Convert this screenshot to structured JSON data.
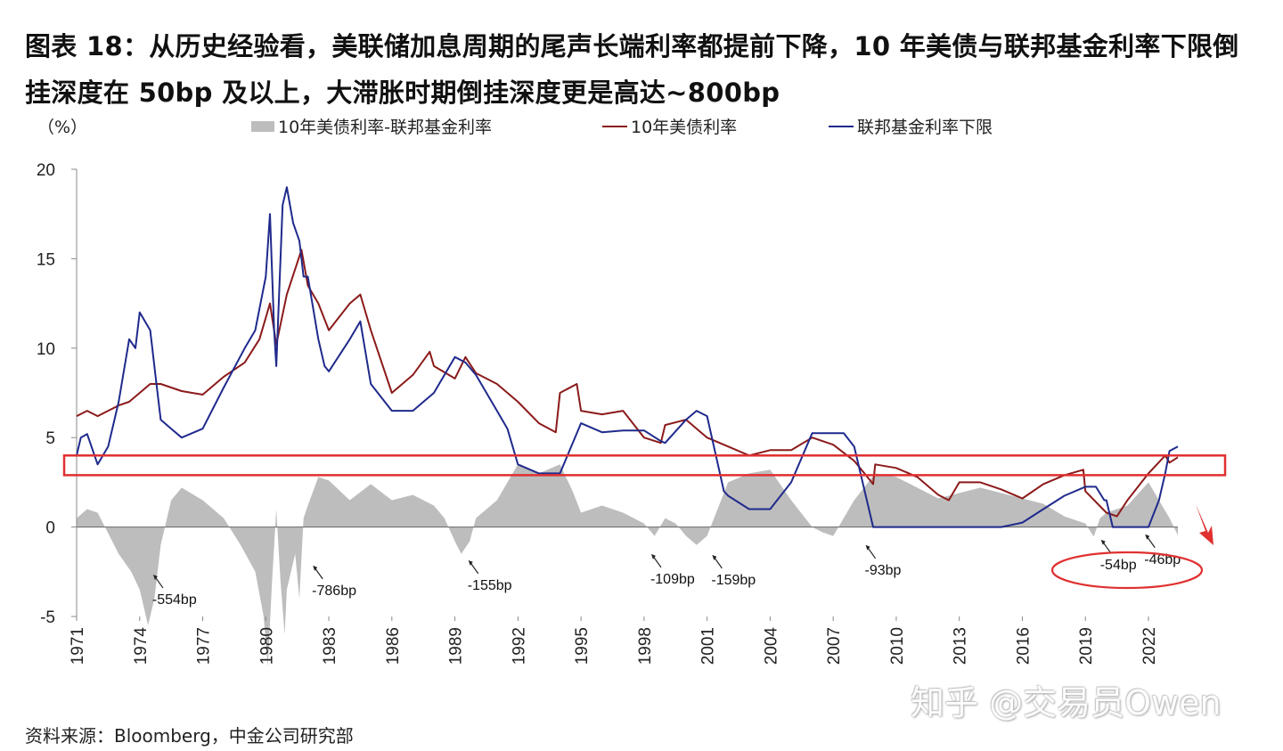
{
  "title": "图表 18：从历史经验看，美联储加息周期的尾声长端利率都提前下降，10 年美债与联邦基金利率下限倒挂深度在 50bp 及以上，大滞胀时期倒挂深度更是高达~800bp",
  "unit_label": "（%）",
  "source": "资料来源：Bloomberg，中金公司研究部",
  "watermark": "知乎 @交易员Owen",
  "colors": {
    "spread": "#bdbdbd",
    "treasury": "#8b1a1a",
    "fedfunds": "#1f2a8c",
    "highlight": "#e03030"
  },
  "chart_data": {
    "type": "line",
    "title": "",
    "xlabel": "",
    "ylabel": "（%）",
    "ylim": [
      -5,
      20
    ],
    "yticks": [
      20,
      15,
      10,
      5,
      0,
      -5
    ],
    "xlim": [
      1971,
      2023.4
    ],
    "xticks": [
      "1971",
      "1974",
      "1977",
      "1980",
      "1983",
      "1986",
      "1989",
      "1992",
      "1995",
      "1998",
      "2001",
      "2004",
      "2007",
      "2010",
      "2013",
      "2016",
      "2019",
      "2022"
    ],
    "legend_position": "top",
    "series": [
      {
        "name": "10年美债利率-联邦基金利率",
        "kind": "area",
        "x": [
          1971,
          1971.5,
          1972,
          1973,
          1973.6,
          1974,
          1974.4,
          1974.7,
          1975,
          1975.5,
          1976,
          1977,
          1978,
          1978.8,
          1979.5,
          1979.9,
          1980.1,
          1980.3,
          1980.5,
          1980.7,
          1980.9,
          1981,
          1981.2,
          1981.4,
          1981.6,
          1981.8,
          1982,
          1982.5,
          1983,
          1984,
          1985,
          1986,
          1987,
          1988,
          1988.5,
          1989,
          1989.3,
          1989.7,
          1990,
          1991,
          1992,
          1993,
          1994,
          1994.6,
          1995,
          1996,
          1997,
          1998,
          1998.5,
          1999,
          1999.5,
          2000,
          2000.5,
          2001,
          2002,
          2003,
          2004,
          2005,
          2006,
          2006.5,
          2007,
          2008,
          2009,
          2010,
          2012,
          2014,
          2016,
          2017,
          2018,
          2019,
          2019.4,
          2019.7,
          2020,
          2021,
          2022,
          2022.5,
          2023,
          2023.4
        ],
        "y": [
          0.5,
          1.0,
          0.8,
          -1.5,
          -2.5,
          -3.5,
          -5.5,
          -4.0,
          -1.0,
          1.5,
          2.2,
          1.5,
          0.5,
          -1.0,
          -2.5,
          -5.0,
          -7.8,
          -3.0,
          1.0,
          -3.0,
          -6.0,
          -3.5,
          -2.5,
          -1.5,
          -4.0,
          0.5,
          1.2,
          2.8,
          2.6,
          1.5,
          2.4,
          1.5,
          1.8,
          1.2,
          0.5,
          -0.8,
          -1.5,
          -0.8,
          0.5,
          1.5,
          3.5,
          3.0,
          3.5,
          2.0,
          0.8,
          1.2,
          0.8,
          0.2,
          -0.5,
          0.5,
          0.2,
          -0.5,
          -1.0,
          -0.5,
          2.5,
          3.0,
          3.2,
          1.5,
          0.0,
          -0.3,
          -0.5,
          1.5,
          3.0,
          2.8,
          1.6,
          2.2,
          1.6,
          1.3,
          0.6,
          0.2,
          -0.54,
          0.5,
          0.8,
          1.2,
          2.5,
          1.5,
          0.5,
          -0.46
        ]
      },
      {
        "name": "10年美债利率",
        "kind": "line",
        "x": [
          1971,
          1971.5,
          1972,
          1973,
          1973.5,
          1974,
          1974.5,
          1975,
          1976,
          1977,
          1978,
          1979,
          1979.7,
          1980.2,
          1980.5,
          1981,
          1981.7,
          1982,
          1982.5,
          1983,
          1984,
          1984.5,
          1985,
          1986,
          1987,
          1987.8,
          1988,
          1989,
          1989.5,
          1990,
          1991,
          1992,
          1993,
          1993.8,
          1994,
          1994.8,
          1995,
          1996,
          1997,
          1998,
          1998.8,
          1999,
          2000,
          2001,
          2002,
          2003,
          2004,
          2005,
          2006,
          2007,
          2008,
          2008.9,
          2009,
          2010,
          2011,
          2012,
          2012.5,
          2013,
          2014,
          2015,
          2016,
          2017,
          2018,
          2018.9,
          2019,
          2020,
          2020.5,
          2021,
          2022,
          2022.8,
          2023,
          2023.4
        ],
        "y": [
          6.2,
          6.5,
          6.2,
          6.8,
          7.0,
          7.5,
          8.0,
          8.0,
          7.6,
          7.4,
          8.4,
          9.2,
          10.5,
          12.5,
          10.2,
          13.0,
          15.5,
          13.5,
          12.5,
          11.0,
          12.5,
          13.0,
          11.0,
          7.5,
          8.5,
          9.8,
          9.0,
          8.3,
          9.5,
          8.6,
          8.0,
          7.0,
          5.8,
          5.3,
          7.5,
          8.0,
          6.5,
          6.3,
          6.5,
          5.0,
          4.7,
          5.7,
          6.0,
          5.0,
          4.5,
          4.0,
          4.3,
          4.3,
          5.0,
          4.6,
          3.7,
          2.4,
          3.5,
          3.3,
          2.8,
          1.8,
          1.5,
          2.5,
          2.5,
          2.1,
          1.6,
          2.4,
          2.9,
          3.2,
          2.0,
          0.8,
          0.6,
          1.5,
          3.0,
          4.0,
          3.6,
          3.9
        ]
      },
      {
        "name": "联邦基金利率下限",
        "kind": "line",
        "x": [
          1971,
          1971.2,
          1971.5,
          1972,
          1972.5,
          1973,
          1973.5,
          1973.8,
          1974,
          1974.5,
          1974.8,
          1975,
          1975.5,
          1976,
          1977,
          1978,
          1979,
          1979.5,
          1980,
          1980.2,
          1980.4,
          1980.5,
          1980.8,
          1981,
          1981.3,
          1981.6,
          1981.8,
          1982,
          1982.5,
          1982.8,
          1983,
          1984,
          1984.5,
          1985,
          1986,
          1987,
          1988,
          1989,
          1989.5,
          1990,
          1991,
          1991.5,
          1992,
          1993,
          1994,
          1995,
          1996,
          1997,
          1998,
          1998.8,
          1999,
          2000,
          2000.5,
          2001,
          2001.8,
          2002,
          2003,
          2004,
          2005,
          2006,
          2007,
          2007.5,
          2008,
          2008.9,
          2009,
          2015,
          2016,
          2017,
          2018,
          2019,
          2019.5,
          2019.9,
          2020,
          2020.3,
          2021,
          2022,
          2022.5,
          2022.8,
          2023,
          2023.4
        ],
        "y": [
          4.0,
          5.0,
          5.2,
          3.5,
          4.5,
          7.0,
          10.5,
          10.0,
          12.0,
          11.0,
          8.0,
          6.0,
          5.5,
          5.0,
          5.5,
          7.8,
          10.0,
          11.0,
          14.0,
          17.5,
          11.0,
          9.0,
          18.0,
          19.0,
          17.0,
          16.0,
          14.0,
          14.0,
          10.5,
          9.0,
          8.7,
          10.5,
          11.5,
          8.0,
          6.5,
          6.5,
          7.5,
          9.5,
          9.2,
          8.5,
          6.5,
          5.5,
          3.5,
          3.0,
          3.0,
          5.8,
          5.3,
          5.4,
          5.4,
          4.8,
          4.7,
          6.0,
          6.5,
          6.2,
          2.0,
          1.75,
          1.0,
          1.0,
          2.5,
          5.25,
          5.25,
          5.25,
          4.5,
          0.0,
          0.0,
          0.0,
          0.25,
          1.0,
          1.75,
          2.25,
          2.25,
          1.5,
          1.5,
          0.0,
          0.0,
          0.0,
          1.5,
          3.0,
          4.25,
          4.5
        ]
      }
    ],
    "annotations": [
      {
        "label": "-554bp",
        "x": 1974.6,
        "y": -4.3
      },
      {
        "label": "-786bp",
        "x": 1982.2,
        "y": -3.8
      },
      {
        "label": "-155bp",
        "x": 1989.6,
        "y": -3.5
      },
      {
        "label": "-109bp",
        "x": 1998.3,
        "y": -3.15
      },
      {
        "label": "-159bp",
        "x": 2001.2,
        "y": -3.2
      },
      {
        "label": "-93bp",
        "x": 2008.5,
        "y": -2.65
      },
      {
        "label": "-54bp",
        "x": 2019.7,
        "y": -2.35
      },
      {
        "label": "-46bp",
        "x": 2021.8,
        "y": -2.05
      }
    ],
    "highlight_band": {
      "y_from": 2.9,
      "y_to": 4.0
    }
  }
}
